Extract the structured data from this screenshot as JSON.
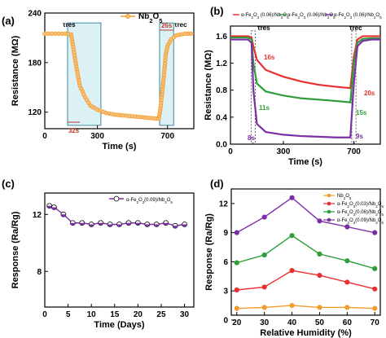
{
  "chart_data": [
    {
      "panel": "(a)",
      "type": "line",
      "xlabel": "Time (s)",
      "ylabel": "Resistance (MΩ)",
      "xticks": [
        0,
        300,
        700
      ],
      "yticks": [
        120,
        180,
        240
      ],
      "xlim": [
        0,
        850
      ],
      "ylim": [
        100,
        240
      ],
      "series": [
        {
          "name": "Nb2O5",
          "color": "#F39C2C",
          "x": [
            0,
            40,
            80,
            120,
            150,
            160,
            180,
            200,
            230,
            260,
            300,
            350,
            400,
            450,
            500,
            550,
            600,
            650,
            660,
            680,
            690,
            700,
            720,
            750,
            800,
            850
          ],
          "y": [
            215,
            215,
            215,
            215,
            214,
            202,
            175,
            152,
            138,
            128,
            123,
            119,
            117,
            116,
            115,
            114,
            113,
            112,
            125,
            165,
            190,
            200,
            208,
            213,
            215,
            215
          ]
        }
      ],
      "annotations": [
        {
          "text": "τres",
          "color": "#000000"
        },
        {
          "text": "32s",
          "color": "#C0392B"
        },
        {
          "text": "τrec",
          "color": "#000000"
        },
        {
          "text": "26s",
          "color": "#C0392B"
        }
      ]
    },
    {
      "panel": "(b)",
      "type": "line",
      "xlabel": "Time (s)",
      "ylabel": "Resistance (MΩ)",
      "xticks": [
        0,
        300,
        700
      ],
      "yticks": [
        0.0,
        0.4,
        0.8,
        1.2,
        1.6
      ],
      "xlim": [
        0,
        850
      ],
      "ylim": [
        0,
        1.75
      ],
      "series": [
        {
          "name": "α-Fe2O3 (0.06)/Nb2O5",
          "color": "#E8312F",
          "x": [
            0,
            50,
            100,
            120,
            130,
            150,
            200,
            300,
            400,
            500,
            600,
            680,
            700,
            720,
            750,
            800,
            850
          ],
          "y": [
            1.6,
            1.6,
            1.6,
            1.58,
            1.45,
            1.25,
            1.1,
            1.0,
            0.93,
            0.88,
            0.85,
            0.83,
            1.3,
            1.55,
            1.6,
            1.6,
            1.6
          ]
        },
        {
          "name": "α-Fe2O3 (0.06)/Nb2O5",
          "color": "#2E9E3A",
          "x": [
            0,
            50,
            100,
            120,
            130,
            150,
            200,
            300,
            400,
            500,
            600,
            680,
            700,
            720,
            750,
            800,
            850
          ],
          "y": [
            1.58,
            1.58,
            1.58,
            1.55,
            1.2,
            0.9,
            0.78,
            0.72,
            0.68,
            0.66,
            0.64,
            0.62,
            1.2,
            1.5,
            1.56,
            1.57,
            1.57
          ]
        },
        {
          "name": "α-Fe2O3 (0.06)/Nb2O5",
          "color": "#7B2FA6",
          "x": [
            0,
            50,
            100,
            120,
            130,
            150,
            200,
            300,
            400,
            500,
            600,
            680,
            700,
            720,
            750,
            800,
            850
          ],
          "y": [
            1.55,
            1.55,
            1.55,
            1.5,
            0.8,
            0.3,
            0.18,
            0.14,
            0.12,
            0.11,
            0.1,
            0.1,
            0.9,
            1.45,
            1.53,
            1.55,
            1.55
          ]
        }
      ],
      "annotations": [
        {
          "text": "τres",
          "color": "#000000"
        },
        {
          "text": "16s",
          "color": "#E8312F"
        },
        {
          "text": "11s",
          "color": "#2E9E3A"
        },
        {
          "text": "8s",
          "color": "#7B2FA6"
        },
        {
          "text": "τrec",
          "color": "#000000"
        },
        {
          "text": "20s",
          "color": "#E8312F"
        },
        {
          "text": "15s",
          "color": "#2E9E3A"
        },
        {
          "text": "9s",
          "color": "#7B2FA6"
        }
      ]
    },
    {
      "panel": "(c)",
      "type": "line",
      "xlabel": "Time (Days)",
      "ylabel": "Response (Ra/Rg)",
      "xticks": [
        0,
        5,
        10,
        15,
        20,
        25,
        30
      ],
      "yticks": [
        8,
        12
      ],
      "xlim": [
        0,
        32
      ],
      "ylim": [
        5.5,
        13.5
      ],
      "series": [
        {
          "name": "α-Fe2O3(0.09)/Nb2O5",
          "color": "#7B2FA6",
          "x": [
            1,
            2,
            4,
            6,
            8,
            10,
            12,
            14,
            16,
            18,
            20,
            22,
            24,
            26,
            28,
            30
          ],
          "y": [
            12.6,
            12.5,
            12.0,
            11.4,
            11.4,
            11.3,
            11.4,
            11.3,
            11.3,
            11.4,
            11.4,
            11.3,
            11.3,
            11.4,
            11.2,
            11.3
          ]
        }
      ]
    },
    {
      "panel": "(d)",
      "type": "line",
      "xlabel": "Relative Humidity (%)",
      "ylabel": "Response (Ra/Rg)",
      "xticks": [
        20,
        30,
        40,
        50,
        60,
        70
      ],
      "yticks": [
        0,
        3,
        6,
        9,
        12
      ],
      "xlim": [
        18,
        72
      ],
      "ylim": [
        0.5,
        13.5
      ],
      "categories": [
        20,
        30,
        40,
        50,
        60,
        70
      ],
      "series": [
        {
          "name": "Nb2O5",
          "color": "#F39C2C",
          "values": [
            1.2,
            1.3,
            1.5,
            1.3,
            1.3,
            1.2
          ]
        },
        {
          "name": "α-Fe2O3(0.03)/Nb2O5",
          "color": "#E8312F",
          "values": [
            3.1,
            3.4,
            5.1,
            4.6,
            3.9,
            3.2
          ]
        },
        {
          "name": "α-Fe2O3(0.06)/Nb2O5",
          "color": "#2E9E3A",
          "values": [
            5.9,
            6.7,
            8.7,
            6.8,
            6.1,
            5.3
          ]
        },
        {
          "name": "α-Fe2O3(0.09)/Nb2O5",
          "color": "#7B2FA6",
          "values": [
            9.0,
            10.6,
            12.6,
            10.2,
            9.6,
            9.0
          ]
        }
      ]
    }
  ]
}
